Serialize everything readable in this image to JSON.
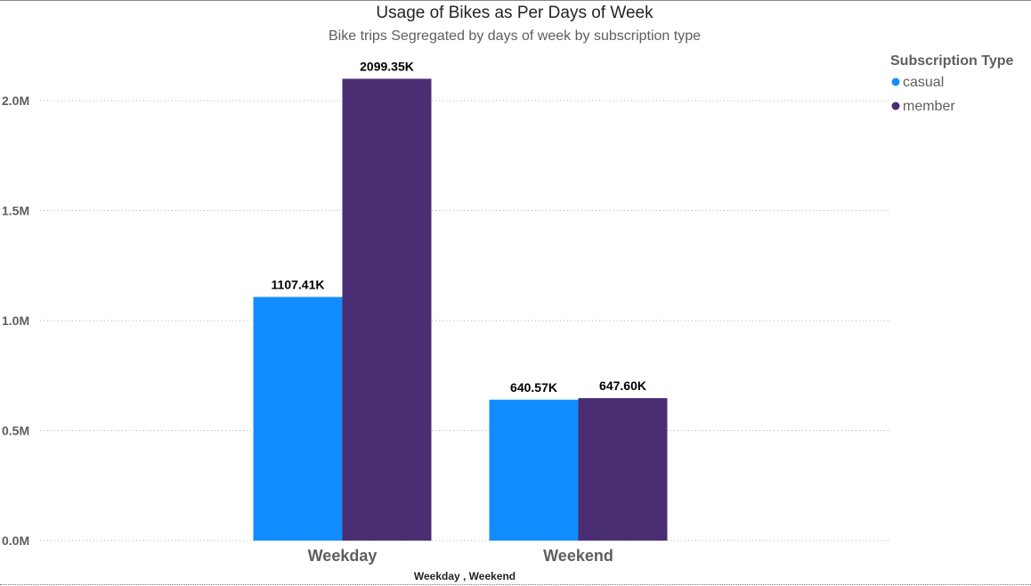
{
  "chart_data": {
    "type": "bar",
    "title": "Usage of Bikes as Per Days of Week",
    "subtitle": "Bike trips Segregated by days of week by subscription type",
    "xlabel": "Weekday , Weekend",
    "ylabel": "",
    "categories": [
      "Weekday",
      "Weekend"
    ],
    "series": [
      {
        "name": "casual",
        "color": "#118dff",
        "values": [
          1107410,
          640570
        ],
        "labels": [
          "1107.41K",
          "640.57K"
        ]
      },
      {
        "name": "member",
        "color": "#4a2e73",
        "values": [
          2099350,
          647600
        ],
        "labels": [
          "2099.35K",
          "647.60K"
        ]
      }
    ],
    "ylim": [
      0,
      2000000
    ],
    "yticks": [
      0,
      500000,
      1000000,
      1500000,
      2000000
    ],
    "ytick_labels": [
      "0.0M",
      "0.5M",
      "1.0M",
      "1.5M",
      "2.0M"
    ],
    "grid": true,
    "legend": {
      "title": "Subscription Type",
      "placement": "top-right"
    }
  }
}
